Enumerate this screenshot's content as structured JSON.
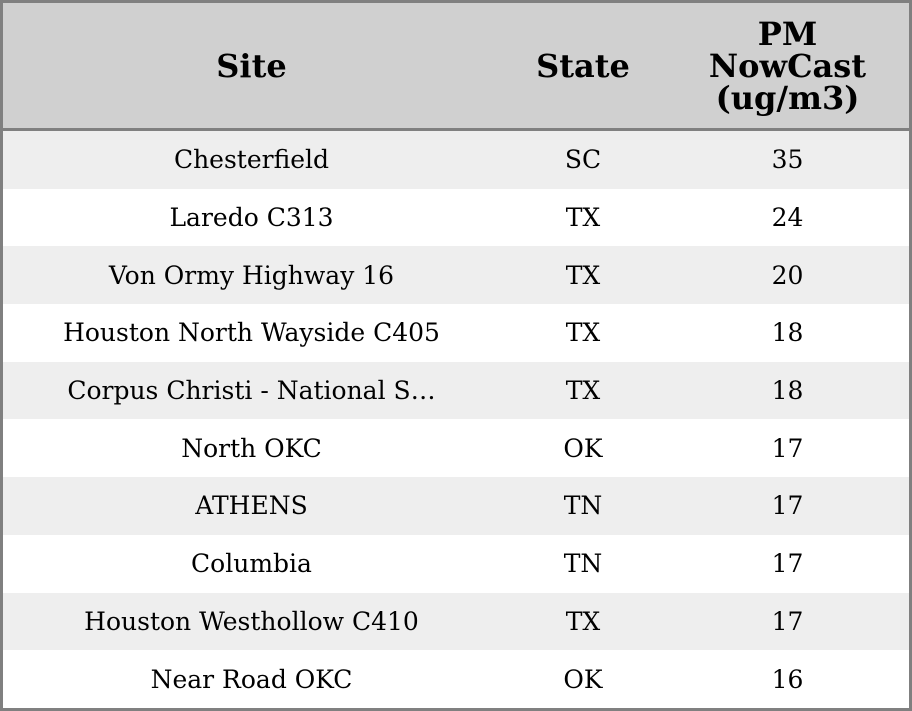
{
  "chart_data": {
    "type": "table",
    "columns": [
      "Site",
      "State",
      "PM NowCast (ug/m3)"
    ],
    "rows": [
      [
        "Chesterfield",
        "SC",
        "35"
      ],
      [
        "Laredo C313",
        "TX",
        "24"
      ],
      [
        "Von Ormy Highway 16",
        "TX",
        "20"
      ],
      [
        "Houston North Wayside C405",
        "TX",
        "18"
      ],
      [
        "Corpus Christi - National S…",
        "TX",
        "18"
      ],
      [
        "North OKC",
        "OK",
        "17"
      ],
      [
        "ATHENS",
        "TN",
        "17"
      ],
      [
        "Columbia",
        "TN",
        "17"
      ],
      [
        "Houston Westhollow C410",
        "TX",
        "17"
      ],
      [
        "Near Road OKC",
        "OK",
        "16"
      ]
    ],
    "colors": {
      "header_bg": "#d0d0d0",
      "stripe_bg": "#eeeeee",
      "border": "#808080"
    }
  }
}
